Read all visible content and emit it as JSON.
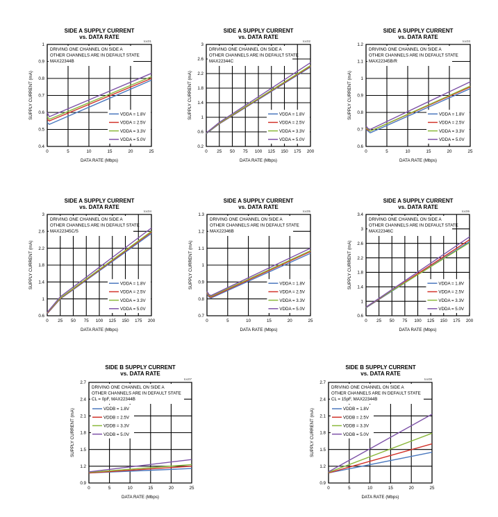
{
  "chart_data": [
    {
      "type": "line",
      "title": "SIDE A SUPPLY CURRENT",
      "subtitle": "vs. DATA RATE",
      "code": "toc01",
      "xlabel": "DATA RATE (Mbps)",
      "ylabel": "SUPPLY CURRENT (mA)",
      "annotation": [
        "DRIVING ONE CHANNEL ON SIDE A",
        "OTHER CHANNELS ARE IN DEFAULT STATE",
        "MAX22344B"
      ],
      "xlim": [
        0,
        25
      ],
      "ylim": [
        0.4,
        1
      ],
      "xticks": [
        0,
        5,
        10,
        15,
        20,
        25
      ],
      "yticks": [
        0.4,
        0.5,
        0.6,
        0.7,
        0.8,
        0.9,
        1
      ],
      "grid": true,
      "legend_position": "bottom-right",
      "series": [
        {
          "name": "VDDA = 1.8V",
          "x": [
            0,
            0.5,
            1,
            25
          ],
          "y": [
            0.54,
            0.53,
            0.535,
            0.79
          ]
        },
        {
          "name": "VDDA = 2.5V",
          "x": [
            0,
            0.5,
            1,
            25
          ],
          "y": [
            0.56,
            0.55,
            0.555,
            0.8
          ]
        },
        {
          "name": "VDDA = 3.3V",
          "x": [
            0,
            0.5,
            1,
            25
          ],
          "y": [
            0.575,
            0.56,
            0.565,
            0.81
          ]
        },
        {
          "name": "VDDA = 5.0V",
          "x": [
            0,
            0.5,
            1,
            25
          ],
          "y": [
            0.6,
            0.575,
            0.58,
            0.83
          ]
        }
      ]
    },
    {
      "type": "line",
      "title": "SIDE A SUPPLY CURRENT",
      "subtitle": "vs. DATA RATE",
      "code": "toc02",
      "xlabel": "DATA RATE (Mbps)",
      "ylabel": "SUPPLY CURRENT (mA)",
      "annotation": [
        "DRIVING ONE CHANNEL ON SIDE A",
        "OTHER CHANNELS ARE IN DEFAULT STATE",
        "MAX22344C"
      ],
      "xlim": [
        0,
        200
      ],
      "ylim": [
        0.2,
        3
      ],
      "xticks": [
        0,
        25,
        50,
        75,
        100,
        125,
        150,
        175,
        200
      ],
      "yticks": [
        0.2,
        0.6,
        1,
        1.4,
        1.8,
        2.2,
        2.6,
        3
      ],
      "grid": true,
      "legend_position": "bottom-right",
      "series": [
        {
          "name": "VDDA = 1.8V",
          "x": [
            0,
            25,
            200
          ],
          "y": [
            0.55,
            0.82,
            2.38
          ]
        },
        {
          "name": "VDDA = 2.5V",
          "x": [
            0,
            25,
            200
          ],
          "y": [
            0.56,
            0.83,
            2.4
          ]
        },
        {
          "name": "VDDA = 3.3V",
          "x": [
            0,
            25,
            200
          ],
          "y": [
            0.56,
            0.84,
            2.42
          ]
        },
        {
          "name": "VDDA = 5.0V",
          "x": [
            0,
            25,
            200
          ],
          "y": [
            0.57,
            0.86,
            2.5
          ]
        }
      ]
    },
    {
      "type": "line",
      "title": "SIDE A SUPPLY CURRENT",
      "subtitle": "vs. DATA RATE",
      "code": "toc03",
      "xlabel": "DATA RATE (Mbps)",
      "ylabel": "SUPPLY CURRENT (mA)",
      "annotation": [
        "DRIVING ONE CHANNEL ON SIDE A",
        "OTHER CHANNELS ARE IN DEFAULT STATE",
        "MAX22345B/R"
      ],
      "xlim": [
        0,
        25
      ],
      "ylim": [
        0.6,
        1.2
      ],
      "xticks": [
        0,
        5,
        10,
        15,
        20,
        25
      ],
      "yticks": [
        0.6,
        0.7,
        0.8,
        0.9,
        1,
        1.1,
        1.2
      ],
      "grid": true,
      "legend_position": "bottom-right",
      "series": [
        {
          "name": "VDDA = 1.8V",
          "x": [
            0,
            0.5,
            1,
            25
          ],
          "y": [
            0.7,
            0.69,
            0.68,
            0.94
          ]
        },
        {
          "name": "VDDA = 2.5V",
          "x": [
            0,
            0.5,
            1,
            25
          ],
          "y": [
            0.705,
            0.695,
            0.69,
            0.95
          ]
        },
        {
          "name": "VDDA = 3.3V",
          "x": [
            0,
            0.5,
            1,
            25
          ],
          "y": [
            0.71,
            0.7,
            0.69,
            0.955
          ]
        },
        {
          "name": "VDDA = 5.0V",
          "x": [
            0,
            0.5,
            1,
            25
          ],
          "y": [
            0.72,
            0.705,
            0.7,
            0.98
          ]
        }
      ]
    },
    {
      "type": "line",
      "title": "SIDE A SUPPLY CURRENT",
      "subtitle": "vs. DATA RATE",
      "code": "toc04",
      "xlabel": "DATA RATE (Mbps)",
      "ylabel": "SUPPLY CURRENT (mA)",
      "annotation": [
        "DRIVING ONE CHANNEL ON SIDE A",
        "OTHER CHANNELS ARE IN DEFAULT STATE",
        "MAX22345C/S"
      ],
      "xlim": [
        0,
        200
      ],
      "ylim": [
        0.6,
        3
      ],
      "xticks": [
        0,
        25,
        50,
        75,
        100,
        125,
        150,
        175,
        200
      ],
      "yticks": [
        0.6,
        1,
        1.4,
        1.8,
        2.2,
        2.6,
        3
      ],
      "grid": true,
      "legend_position": "bottom-right",
      "series": [
        {
          "name": "VDDA = 1.8V",
          "x": [
            0,
            25,
            200
          ],
          "y": [
            0.65,
            1.0,
            2.55
          ]
        },
        {
          "name": "VDDA = 2.5V",
          "x": [
            0,
            25,
            200
          ],
          "y": [
            0.66,
            1.01,
            2.58
          ]
        },
        {
          "name": "VDDA = 3.3V",
          "x": [
            0,
            25,
            200
          ],
          "y": [
            0.67,
            1.02,
            2.6
          ]
        },
        {
          "name": "VDDA = 5.0V",
          "x": [
            0,
            25,
            200
          ],
          "y": [
            0.68,
            1.05,
            2.68
          ]
        }
      ]
    },
    {
      "type": "line",
      "title": "SIDE A SUPPLY CURRENT",
      "subtitle": "vs. DATA RATE",
      "code": "toc05",
      "xlabel": "DATA RATE (Mbps)",
      "ylabel": "SUPPLY CURRENT (mA)",
      "annotation": [
        "DRIVING ONE CHANNEL ON SIDE A",
        "OTHER CHANNELS ARE IN DEFAULT STATE",
        "MAX22346B"
      ],
      "xlim": [
        0,
        25
      ],
      "ylim": [
        0.7,
        1.3
      ],
      "xticks": [
        0,
        5,
        10,
        15,
        20,
        25
      ],
      "yticks": [
        0.7,
        0.8,
        0.9,
        1,
        1.1,
        1.2,
        1.3
      ],
      "grid": true,
      "legend_position": "bottom-right",
      "series": [
        {
          "name": "VDDA = 1.8V",
          "x": [
            0,
            0.5,
            1,
            25
          ],
          "y": [
            0.83,
            0.81,
            0.805,
            1.07
          ]
        },
        {
          "name": "VDDA = 2.5V",
          "x": [
            0,
            0.5,
            1,
            25
          ],
          "y": [
            0.835,
            0.815,
            0.81,
            1.08
          ]
        },
        {
          "name": "VDDA = 3.3V",
          "x": [
            0,
            0.5,
            1,
            25
          ],
          "y": [
            0.84,
            0.82,
            0.815,
            1.085
          ]
        },
        {
          "name": "VDDA = 5.0V",
          "x": [
            0,
            0.5,
            1,
            25
          ],
          "y": [
            0.845,
            0.825,
            0.82,
            1.1
          ]
        }
      ]
    },
    {
      "type": "line",
      "title": "SIDE A SUPPLY CURRENT",
      "subtitle": "vs. DATA RATE",
      "code": "toc06",
      "xlabel": "DATA RATE (Mbps)",
      "ylabel": "SUPPLY CURRENT (mA)",
      "annotation": [
        "DRIVING ONE CHANNEL ON SIDE A",
        "OTHER CHANNELS ARE IN DEFAULT STATE",
        "MAX22346C"
      ],
      "xlim": [
        0,
        200
      ],
      "ylim": [
        0.6,
        3.4
      ],
      "xticks": [
        0,
        25,
        50,
        75,
        100,
        125,
        150,
        175,
        200
      ],
      "yticks": [
        0.6,
        1,
        1.4,
        1.8,
        2.2,
        2.6,
        3,
        3.4
      ],
      "grid": true,
      "legend_position": "bottom-right",
      "series": [
        {
          "name": "VDDA = 1.8V",
          "x": [
            0,
            25,
            200
          ],
          "y": [
            0.82,
            1.05,
            2.65
          ]
        },
        {
          "name": "VDDA = 2.5V",
          "x": [
            0,
            25,
            200
          ],
          "y": [
            0.83,
            1.06,
            2.7
          ]
        },
        {
          "name": "VDDA = 3.3V",
          "x": [
            0,
            25,
            200
          ],
          "y": [
            0.83,
            1.07,
            2.62
          ]
        },
        {
          "name": "VDDA = 5.0V",
          "x": [
            0,
            25,
            200
          ],
          "y": [
            0.84,
            1.08,
            2.78
          ]
        }
      ]
    },
    {
      "type": "line",
      "title": "SIDE B SUPPLY CURRENT",
      "subtitle": "vs. DATA RATE",
      "code": "toc07",
      "xlabel": "DATA RATE (Mbps)",
      "ylabel": "SUPPLY CURRENT (mA)",
      "annotation": [
        "DRIVING ONE CHANNEL ON SIDE A",
        "OTHER CHANNELS ARE IN DEFAULT STATE",
        "CL = 0pF, MAX22344B"
      ],
      "xlim": [
        0,
        25
      ],
      "ylim": [
        0.9,
        2.7
      ],
      "xticks": [
        0,
        5,
        10,
        15,
        20,
        25
      ],
      "yticks": [
        0.9,
        1.2,
        1.5,
        1.8,
        2.1,
        2.4,
        2.7
      ],
      "grid": true,
      "legend_position": "top-left",
      "series": [
        {
          "name": "VDDB = 1.8V",
          "x": [
            0,
            25
          ],
          "y": [
            1.08,
            1.16
          ]
        },
        {
          "name": "VDDB = 2.5V",
          "x": [
            0,
            25
          ],
          "y": [
            1.08,
            1.2
          ]
        },
        {
          "name": "VDDB = 3.3V",
          "x": [
            0,
            25
          ],
          "y": [
            1.09,
            1.23
          ]
        },
        {
          "name": "VDDB = 5.0V",
          "x": [
            0,
            25
          ],
          "y": [
            1.1,
            1.32
          ]
        }
      ]
    },
    {
      "type": "line",
      "title": "SIDE B SUPPLY CURRENT",
      "subtitle": "vs. DATA RATE",
      "code": "toc08",
      "xlabel": "DATA RATE (Mbps)",
      "ylabel": "SUPPLY CURRENT (mA)",
      "annotation": [
        "DRIVING ONE CHANNEL ON SIDE A",
        "OTHER CHANNELS ARE IN DEFAULT STATE",
        "CL = 15pF, MAX22344B"
      ],
      "xlim": [
        0,
        25
      ],
      "ylim": [
        0.9,
        2.7
      ],
      "xticks": [
        0,
        5,
        10,
        15,
        20,
        25
      ],
      "yticks": [
        0.9,
        1.2,
        1.5,
        1.8,
        2.1,
        2.4,
        2.7
      ],
      "grid": true,
      "legend_position": "top-left",
      "series": [
        {
          "name": "VDDB = 1.8V",
          "x": [
            0,
            25
          ],
          "y": [
            1.08,
            1.45
          ]
        },
        {
          "name": "VDDB = 2.5V",
          "x": [
            0,
            25
          ],
          "y": [
            1.08,
            1.6
          ]
        },
        {
          "name": "VDDB = 3.3V",
          "x": [
            0,
            25
          ],
          "y": [
            1.09,
            1.79
          ]
        },
        {
          "name": "VDDB = 5.0V",
          "x": [
            0,
            25
          ],
          "y": [
            1.1,
            2.13
          ]
        }
      ]
    }
  ],
  "colors": {
    "series": [
      "#4a78be",
      "#d2332a",
      "#8ab83a",
      "#7d52a7"
    ],
    "grid": "#000000",
    "frame": "#000000"
  }
}
